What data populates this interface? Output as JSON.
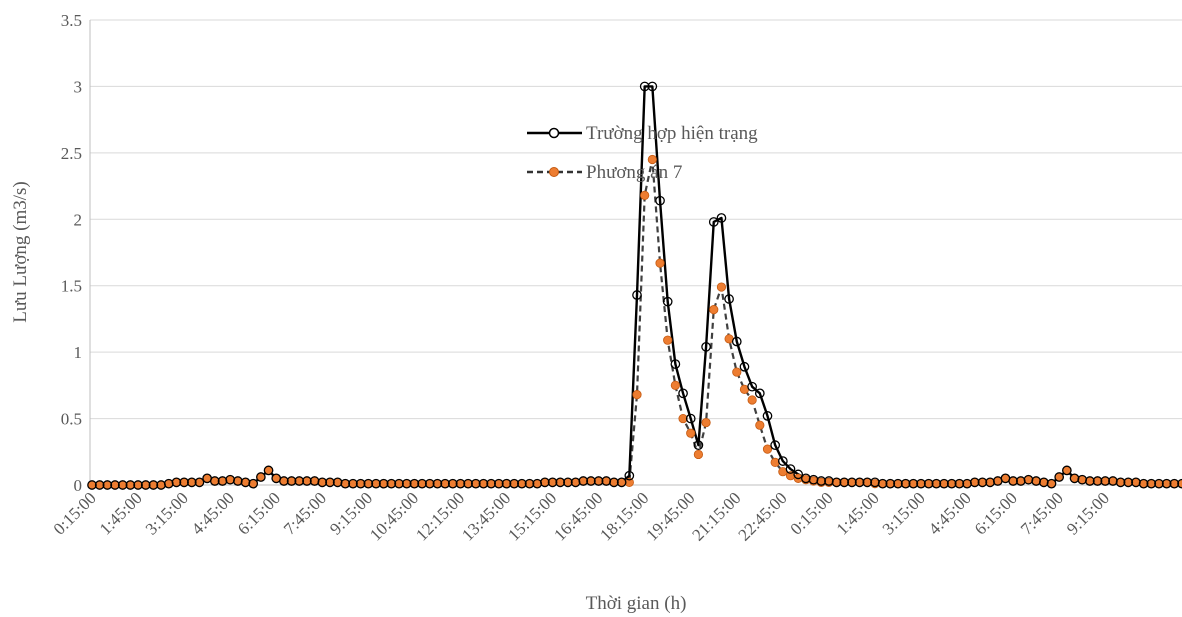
{
  "chart_data": {
    "type": "line",
    "xlabel": "Thời gian (h)",
    "ylabel": "Lưu Lượng (m3/s)",
    "ylim": [
      0,
      3.5
    ],
    "yticks": [
      "0",
      "0.5",
      "1",
      "1.5",
      "2",
      "2.5",
      "3",
      "3.5"
    ],
    "grid": "horizontal",
    "legend_position": "upper-center",
    "x_step": "0:15:00",
    "x_tick_labels": [
      "0:15:00",
      "1:45:00",
      "3:15:00",
      "4:45:00",
      "6:15:00",
      "7:45:00",
      "9:15:00",
      "10:45:00",
      "12:15:00",
      "13:45:00",
      "15:15:00",
      "16:45:00",
      "18:15:00",
      "19:45:00",
      "21:15:00",
      "22:45:00",
      "0:15:00",
      "1:45:00",
      "3:15:00",
      "4:45:00",
      "6:15:00",
      "7:45:00",
      "9:15:00"
    ],
    "series": [
      {
        "name": "Trường hợp hiện trạng",
        "style": "solid",
        "marker": "open-circle",
        "color": "#000000",
        "values": [
          0.0,
          0.0,
          0.0,
          0.0,
          0.0,
          0.0,
          0.0,
          0.0,
          0.0,
          0.0,
          0.01,
          0.02,
          0.02,
          0.02,
          0.02,
          0.05,
          0.03,
          0.03,
          0.04,
          0.03,
          0.02,
          0.01,
          0.06,
          0.11,
          0.05,
          0.03,
          0.03,
          0.03,
          0.03,
          0.03,
          0.02,
          0.02,
          0.02,
          0.01,
          0.01,
          0.01,
          0.01,
          0.01,
          0.01,
          0.01,
          0.01,
          0.01,
          0.01,
          0.01,
          0.01,
          0.01,
          0.01,
          0.01,
          0.01,
          0.01,
          0.01,
          0.01,
          0.01,
          0.01,
          0.01,
          0.01,
          0.01,
          0.01,
          0.01,
          0.02,
          0.02,
          0.02,
          0.02,
          0.02,
          0.03,
          0.03,
          0.03,
          0.03,
          0.02,
          0.02,
          0.07,
          1.43,
          3.0,
          3.0,
          2.14,
          1.38,
          0.91,
          0.69,
          0.5,
          0.3,
          1.04,
          1.98,
          2.01,
          1.4,
          1.08,
          0.89,
          0.74,
          0.69,
          0.52,
          0.3,
          0.18,
          0.12,
          0.08,
          0.05,
          0.04,
          0.03,
          0.03,
          0.02,
          0.02,
          0.02,
          0.02,
          0.02,
          0.02,
          0.01,
          0.01,
          0.01,
          0.01,
          0.01,
          0.01,
          0.01,
          0.01,
          0.01,
          0.01,
          0.01,
          0.01,
          0.02,
          0.02,
          0.02,
          0.03,
          0.05,
          0.03,
          0.03,
          0.04,
          0.03,
          0.02,
          0.01,
          0.06,
          0.11,
          0.05,
          0.04,
          0.03,
          0.03,
          0.03,
          0.03,
          0.02,
          0.02,
          0.02,
          0.01,
          0.01,
          0.01,
          0.01,
          0.01,
          0.01
        ]
      },
      {
        "name": "Phương án 7",
        "style": "dashed",
        "marker": "filled-circle",
        "color": "#ED7D31",
        "values": [
          0.0,
          0.0,
          0.0,
          0.0,
          0.0,
          0.0,
          0.0,
          0.0,
          0.0,
          0.0,
          0.01,
          0.02,
          0.02,
          0.02,
          0.02,
          0.05,
          0.03,
          0.03,
          0.04,
          0.03,
          0.02,
          0.01,
          0.06,
          0.11,
          0.05,
          0.03,
          0.03,
          0.03,
          0.03,
          0.03,
          0.02,
          0.02,
          0.02,
          0.01,
          0.01,
          0.01,
          0.01,
          0.01,
          0.01,
          0.01,
          0.01,
          0.01,
          0.01,
          0.01,
          0.01,
          0.01,
          0.01,
          0.01,
          0.01,
          0.01,
          0.01,
          0.01,
          0.01,
          0.01,
          0.01,
          0.01,
          0.01,
          0.01,
          0.01,
          0.02,
          0.02,
          0.02,
          0.02,
          0.02,
          0.03,
          0.03,
          0.03,
          0.03,
          0.02,
          0.02,
          0.02,
          0.68,
          2.18,
          2.45,
          1.67,
          1.09,
          0.75,
          0.5,
          0.39,
          0.23,
          0.47,
          1.32,
          1.49,
          1.1,
          0.85,
          0.72,
          0.64,
          0.45,
          0.27,
          0.17,
          0.1,
          0.07,
          0.05,
          0.04,
          0.03,
          0.02,
          0.02,
          0.02,
          0.02,
          0.02,
          0.02,
          0.02,
          0.01,
          0.01,
          0.01,
          0.01,
          0.01,
          0.01,
          0.01,
          0.01,
          0.01,
          0.01,
          0.01,
          0.01,
          0.01,
          0.02,
          0.02,
          0.02,
          0.03,
          0.05,
          0.03,
          0.03,
          0.04,
          0.03,
          0.02,
          0.01,
          0.06,
          0.11,
          0.05,
          0.04,
          0.03,
          0.03,
          0.03,
          0.03,
          0.02,
          0.02,
          0.02,
          0.01,
          0.01,
          0.01,
          0.01,
          0.01,
          0.01
        ]
      }
    ]
  }
}
